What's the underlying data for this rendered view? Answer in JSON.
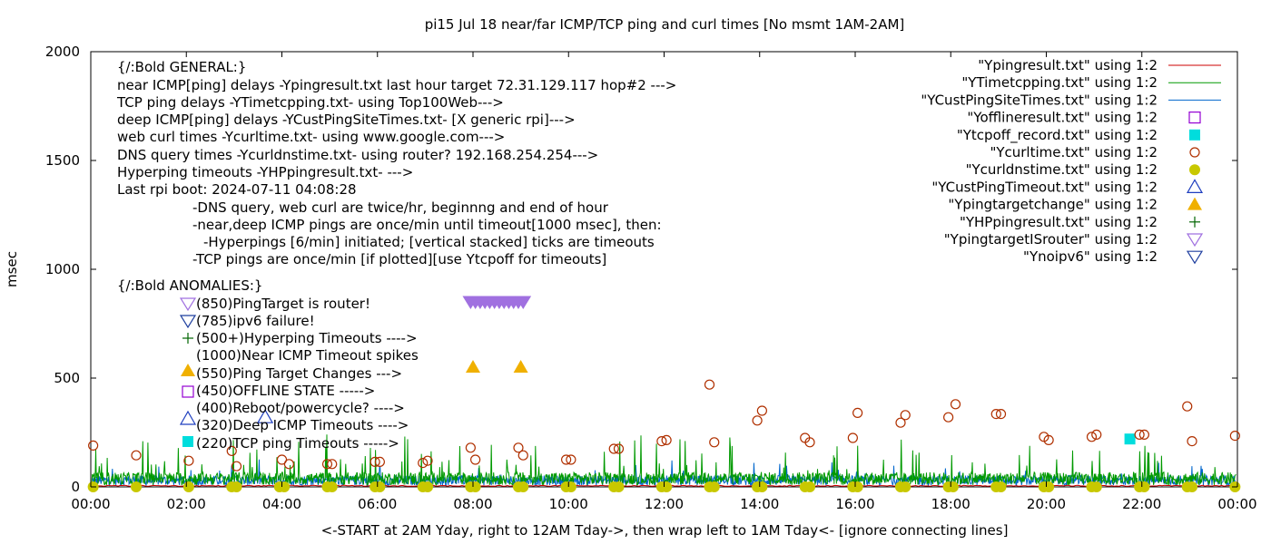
{
  "chart_data": {
    "type": "line",
    "title": "pi15 Jul 18  near/far ICMP/TCP ping and curl times [No msmt 1AM-2AM]",
    "xlabel": "<-START at 2AM Yday, right to 12AM Tday->, then wrap left to 1AM Tday<- [ignore connecting lines]",
    "ylabel": "msec",
    "xlim": [
      0,
      24
    ],
    "ylim": [
      0,
      2000
    ],
    "x_ticks": [
      {
        "v": 0,
        "label": "00:00"
      },
      {
        "v": 2,
        "label": "02:00"
      },
      {
        "v": 4,
        "label": "04:00"
      },
      {
        "v": 6,
        "label": "06:00"
      },
      {
        "v": 8,
        "label": "08:00"
      },
      {
        "v": 10,
        "label": "10:00"
      },
      {
        "v": 12,
        "label": "12:00"
      },
      {
        "v": 14,
        "label": "14:00"
      },
      {
        "v": 16,
        "label": "16:00"
      },
      {
        "v": 18,
        "label": "18:00"
      },
      {
        "v": 20,
        "label": "20:00"
      },
      {
        "v": 22,
        "label": "22:00"
      },
      {
        "v": 24,
        "label": "00:00"
      }
    ],
    "y_ticks": [
      {
        "v": 0,
        "label": "0"
      },
      {
        "v": 500,
        "label": "500"
      },
      {
        "v": 1000,
        "label": "1000"
      },
      {
        "v": 1500,
        "label": "1500"
      },
      {
        "v": 2000,
        "label": "2000"
      }
    ],
    "grid": false,
    "legend_placement": "top-right",
    "series": [
      {
        "name": "\"Ypingresult.txt\" using 1:2",
        "style": "line",
        "color": "#cc0000",
        "level": 5
      },
      {
        "name": "\"YTimetcpping.txt\" using 1:2",
        "style": "line",
        "color": "#009900",
        "level": 45
      },
      {
        "name": "\"YCustPingSiteTimes.txt\" using 1:2",
        "style": "line",
        "color": "#0066cc",
        "level": 35
      },
      {
        "name": "\"Yofflineresult.txt\" using 1:2",
        "style": "open-square",
        "color": "#9400d3",
        "points": []
      },
      {
        "name": "\"Ytcpoff_record.txt\" using 1:2",
        "style": "filled-square",
        "color": "#00dddd",
        "points": [
          [
            21.75,
            220
          ]
        ]
      },
      {
        "name": "\"Ycurltime.txt\" using 1:2",
        "style": "open-circle",
        "color": "#b03000",
        "points": [
          [
            0.05,
            190
          ],
          [
            0.95,
            145
          ],
          [
            2.05,
            120
          ],
          [
            2.95,
            165
          ],
          [
            3.05,
            95
          ],
          [
            4.0,
            125
          ],
          [
            4.15,
            105
          ],
          [
            4.95,
            105
          ],
          [
            5.05,
            105
          ],
          [
            5.95,
            115
          ],
          [
            6.05,
            115
          ],
          [
            6.95,
            110
          ],
          [
            7.05,
            120
          ],
          [
            7.95,
            180
          ],
          [
            8.05,
            125
          ],
          [
            8.95,
            180
          ],
          [
            9.05,
            145
          ],
          [
            9.95,
            125
          ],
          [
            10.05,
            125
          ],
          [
            10.95,
            175
          ],
          [
            11.05,
            175
          ],
          [
            11.95,
            210
          ],
          [
            12.05,
            215
          ],
          [
            12.95,
            470
          ],
          [
            13.05,
            205
          ],
          [
            13.95,
            305
          ],
          [
            14.05,
            350
          ],
          [
            14.95,
            225
          ],
          [
            15.05,
            205
          ],
          [
            15.95,
            225
          ],
          [
            16.05,
            340
          ],
          [
            16.95,
            295
          ],
          [
            17.05,
            330
          ],
          [
            17.95,
            320
          ],
          [
            18.1,
            380
          ],
          [
            18.95,
            335
          ],
          [
            19.05,
            335
          ],
          [
            19.95,
            230
          ],
          [
            20.05,
            215
          ],
          [
            20.95,
            230
          ],
          [
            21.05,
            240
          ],
          [
            21.95,
            240
          ],
          [
            22.05,
            240
          ],
          [
            22.95,
            370
          ],
          [
            23.05,
            210
          ],
          [
            23.95,
            235
          ]
        ]
      },
      {
        "name": "\"Ycurldnstime.txt\" using 1:2",
        "style": "filled-circle",
        "color": "#c8c800",
        "points": [
          [
            0.05,
            0
          ],
          [
            0.95,
            0
          ],
          [
            2.05,
            0
          ],
          [
            2.95,
            0
          ],
          [
            3.05,
            0
          ],
          [
            3.95,
            0
          ],
          [
            4.05,
            0
          ],
          [
            4.95,
            0
          ],
          [
            5.05,
            0
          ],
          [
            5.95,
            0
          ],
          [
            6.05,
            0
          ],
          [
            6.95,
            0
          ],
          [
            7.05,
            0
          ],
          [
            7.95,
            0
          ],
          [
            8.05,
            0
          ],
          [
            8.95,
            0
          ],
          [
            9.05,
            0
          ],
          [
            9.95,
            0
          ],
          [
            10.05,
            0
          ],
          [
            10.95,
            0
          ],
          [
            11.05,
            0
          ],
          [
            11.95,
            0
          ],
          [
            12.05,
            0
          ],
          [
            12.95,
            0
          ],
          [
            13.05,
            0
          ],
          [
            13.95,
            0
          ],
          [
            14.05,
            0
          ],
          [
            14.95,
            0
          ],
          [
            15.05,
            0
          ],
          [
            15.95,
            0
          ],
          [
            16.05,
            0
          ],
          [
            16.95,
            0
          ],
          [
            17.05,
            0
          ],
          [
            17.95,
            0
          ],
          [
            18.05,
            0
          ],
          [
            18.95,
            0
          ],
          [
            19.05,
            0
          ],
          [
            19.95,
            0
          ],
          [
            20.05,
            0
          ],
          [
            20.95,
            0
          ],
          [
            21.05,
            0
          ],
          [
            21.95,
            0
          ],
          [
            22.05,
            0
          ],
          [
            22.95,
            0
          ],
          [
            23.05,
            0
          ],
          [
            23.95,
            0
          ]
        ]
      },
      {
        "name": "\"YCustPingTimeout.txt\" using 1:2",
        "style": "open-triangle-up",
        "color": "#1f3fbf",
        "points": [
          [
            3.65,
            320
          ]
        ]
      },
      {
        "name": "\"Ypingtargetchange\" using 1:2",
        "style": "filled-triangle-up",
        "color": "#f0b000",
        "points": [
          [
            8.0,
            550
          ],
          [
            9.0,
            550
          ]
        ]
      },
      {
        "name": "\"YHPpingresult.txt\" using 1:2",
        "style": "plus",
        "color": "#006400",
        "points": []
      },
      {
        "name": "\"YpingtargetISrouter\" using 1:2",
        "style": "triangle-down",
        "color": "#a070e0",
        "points": [
          [
            7.95,
            850
          ],
          [
            8.05,
            850
          ],
          [
            8.15,
            850
          ],
          [
            8.25,
            850
          ],
          [
            8.35,
            850
          ],
          [
            8.45,
            850
          ],
          [
            8.55,
            850
          ],
          [
            8.65,
            850
          ],
          [
            8.75,
            850
          ],
          [
            8.85,
            850
          ],
          [
            8.95,
            850
          ],
          [
            9.05,
            850
          ]
        ]
      },
      {
        "name": "\"Ynoipv6\" using 1:2",
        "style": "triangle-down",
        "color": "#1f3f9f",
        "points": []
      }
    ],
    "annotations": [
      "{/:Bold GENERAL:}",
      "near ICMP[ping] delays -Ypingresult.txt last hour target 72.31.129.117 hop#2 --->",
      "TCP ping delays -YTimetcpping.txt- using Top100Web--->",
      "deep ICMP[ping] delays -YCustPingSiteTimes.txt- [X generic rpi]--->",
      "web curl times -Ycurltime.txt- using www.google.com--->",
      "DNS query times -Ycurldnstime.txt- using router? 192.168.254.254--->",
      "Hyperping timeouts -YHPpingresult.txt- --->",
      "Last rpi boot: 2024-07-11 04:08:28",
      "-DNS query, web curl are twice/hr, beginnng and end of hour",
      "-near,deep ICMP pings are once/min until timeout[1000 msec], then:",
      "-Hyperpings [6/min] initiated; [vertical stacked] ticks are timeouts",
      "-TCP pings are once/min [if plotted][use Ytcpoff for timeouts]",
      "{/:Bold ANOMALIES:}",
      "(850)PingTarget is router!",
      "(785)ipv6 failure!",
      "(500+)Hyperping Timeouts ---->",
      "(1000)Near ICMP Timeout spikes",
      "(550)Ping Target Changes --->",
      "(450)OFFLINE STATE ----->",
      "(400)Reboot/powercycle? ---->",
      "(320)Deep ICMP Timeouts ---->",
      "(220)TCP ping Timeouts ----->"
    ],
    "anomaly_symbols": [
      "triangle-down-violet",
      "triangle-down-navy",
      "plus",
      "none",
      "filled-triangle-up",
      "open-square",
      "none",
      "open-triangle-up",
      "filled-square"
    ]
  }
}
